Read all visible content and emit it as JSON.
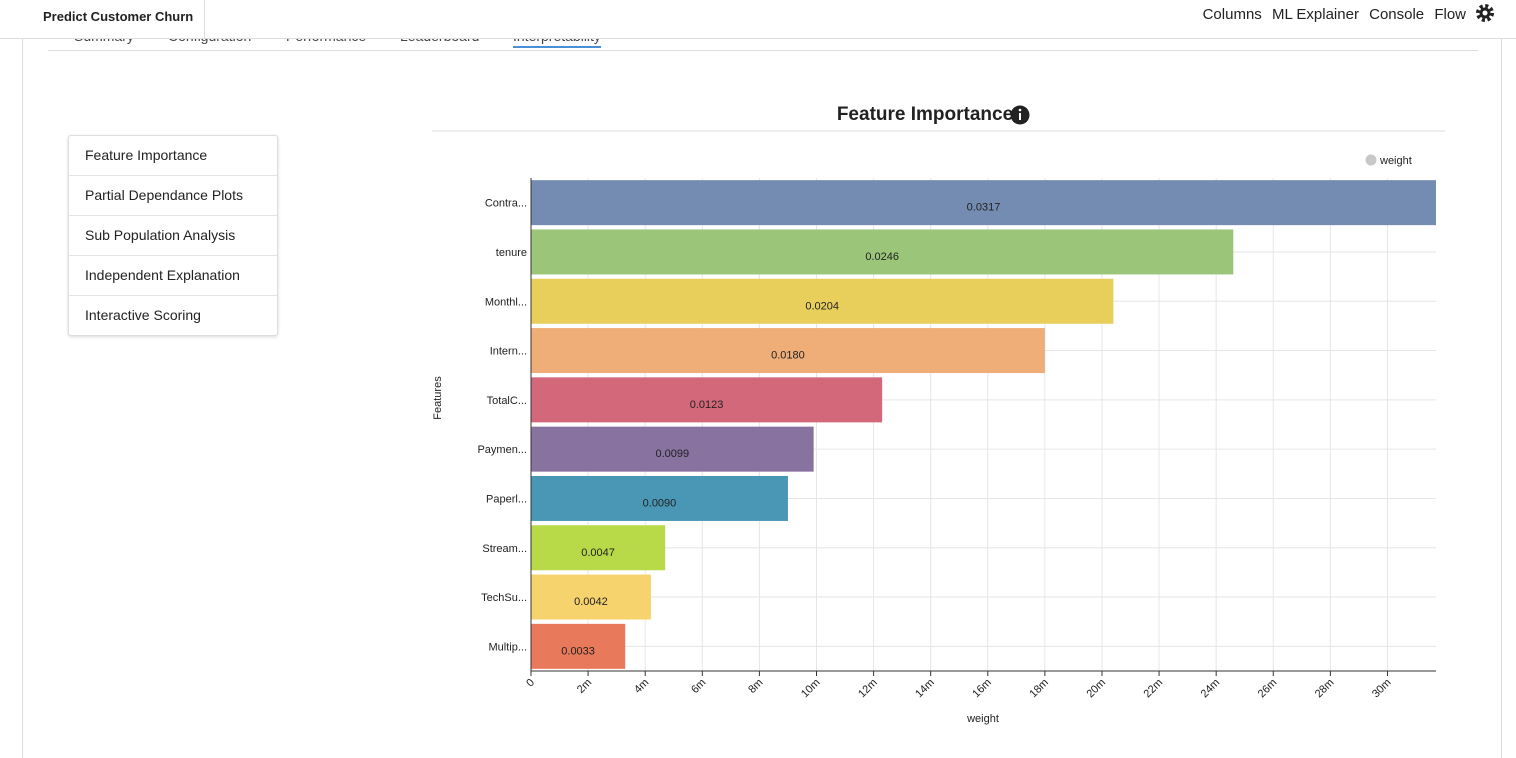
{
  "header": {
    "title": "Predict Customer Churn",
    "links": [
      "Columns",
      "ML Explainer",
      "Console",
      "Flow"
    ]
  },
  "tabs": [
    "Summary",
    "Configuration",
    "Performance",
    "Leaderboard",
    "Interpretability"
  ],
  "sidebar": [
    "Feature Importance",
    "Partial Dependance Plots",
    "Sub Population Analysis",
    "Independent Explanation",
    "Interactive Scoring"
  ],
  "chart_data": {
    "type": "hbar",
    "title": "Feature Importance",
    "xlabel": "weight",
    "ylabel": "Features",
    "legend": "weight",
    "legend_color": "#c8c8c8",
    "legend_position": "upper right",
    "categories": [
      "Contra...",
      "tenure",
      "Monthl...",
      "Intern...",
      "TotalC...",
      "Paymen...",
      "Paperl...",
      "Stream...",
      "TechSu...",
      "Multip..."
    ],
    "values": [
      0.0317,
      0.0246,
      0.0204,
      0.018,
      0.0123,
      0.0099,
      0.009,
      0.0047,
      0.0042,
      0.0033
    ],
    "value_labels": [
      "0.0317",
      "0.0246",
      "0.0204",
      "0.0180",
      "0.0123",
      "0.0099",
      "0.0090",
      "0.0047",
      "0.0042",
      "0.0033"
    ],
    "colors": [
      "#758cb2",
      "#9bc67a",
      "#e8cf5c",
      "#efae78",
      "#d2687a",
      "#8872a0",
      "#4a96b5",
      "#b8da48",
      "#f7d36e",
      "#e8795a"
    ],
    "xlim": [
      0,
      0.0317
    ],
    "xticks": [
      0,
      {
        "value": 0.002,
        "label": "2m"
      },
      {
        "value": 0.004,
        "label": "4m"
      },
      {
        "value": 0.006,
        "label": "6m"
      },
      {
        "value": 0.008,
        "label": "8m"
      },
      {
        "value": 0.01,
        "label": "10m"
      },
      {
        "value": 0.012,
        "label": "12m"
      },
      {
        "value": 0.014,
        "label": "14m"
      },
      {
        "value": 0.016,
        "label": "16m"
      },
      {
        "value": 0.018,
        "label": "18m"
      },
      {
        "value": 0.02,
        "label": "20m"
      },
      {
        "value": 0.022,
        "label": "22m"
      },
      {
        "value": 0.024,
        "label": "24m"
      },
      {
        "value": 0.026,
        "label": "26m"
      },
      {
        "value": 0.028,
        "label": "28m"
      },
      {
        "value": 0.03,
        "label": "30m"
      }
    ],
    "grid": true
  }
}
